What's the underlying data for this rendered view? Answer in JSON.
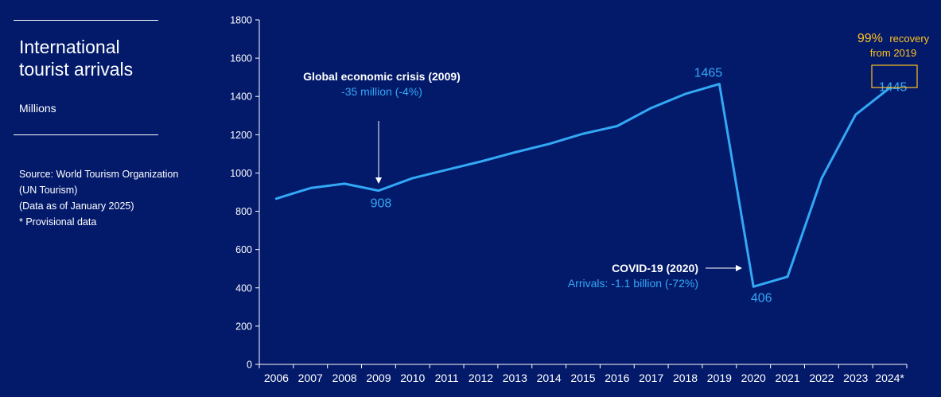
{
  "left_panel": {
    "title_line1": "International",
    "title_line2": "tourist arrivals",
    "unit": "Millions",
    "source_lines": [
      "Source: World Tourism Organization",
      "(UN Tourism)",
      "(Data as of January 2025)",
      "* Provisional data"
    ]
  },
  "annotations": {
    "crisis_title": "Global economic crisis (2009)",
    "crisis_detail": "-35 million (-4%)",
    "covid_title": "COVID-19 (2020)",
    "covid_detail": "Arrivals: -1.1 billion (-72%)",
    "recovery_pct": "99%",
    "recovery_word": "recovery",
    "recovery_from": "from 2019"
  },
  "colors": {
    "background": "#031a6b",
    "line": "#33a8f5",
    "highlight": "#ffc21e",
    "text": "#ffffff"
  },
  "chart_data": {
    "type": "line",
    "title": "",
    "xlabel": "",
    "ylabel": "",
    "categories": [
      "2006",
      "2007",
      "2008",
      "2009",
      "2010",
      "2011",
      "2012",
      "2013",
      "2014",
      "2015",
      "2016",
      "2017",
      "2018",
      "2019",
      "2020",
      "2021",
      "2022",
      "2023",
      "2024*"
    ],
    "values": [
      866,
      921,
      944,
      908,
      973,
      1017,
      1060,
      1108,
      1152,
      1205,
      1245,
      1340,
      1413,
      1465,
      406,
      458,
      972,
      1305,
      1445
    ],
    "ylim": [
      0,
      1800
    ],
    "yticks": [
      "0",
      "200",
      "400",
      "600",
      "800",
      "1000",
      "1200",
      "1400",
      "1600",
      "1800"
    ],
    "data_labels": [
      {
        "category": "2009",
        "text": "908"
      },
      {
        "category": "2019",
        "text": "1465"
      },
      {
        "category": "2020",
        "text": "406"
      },
      {
        "category": "2024*",
        "text": "1445"
      }
    ],
    "grid": false,
    "legend": "none"
  }
}
